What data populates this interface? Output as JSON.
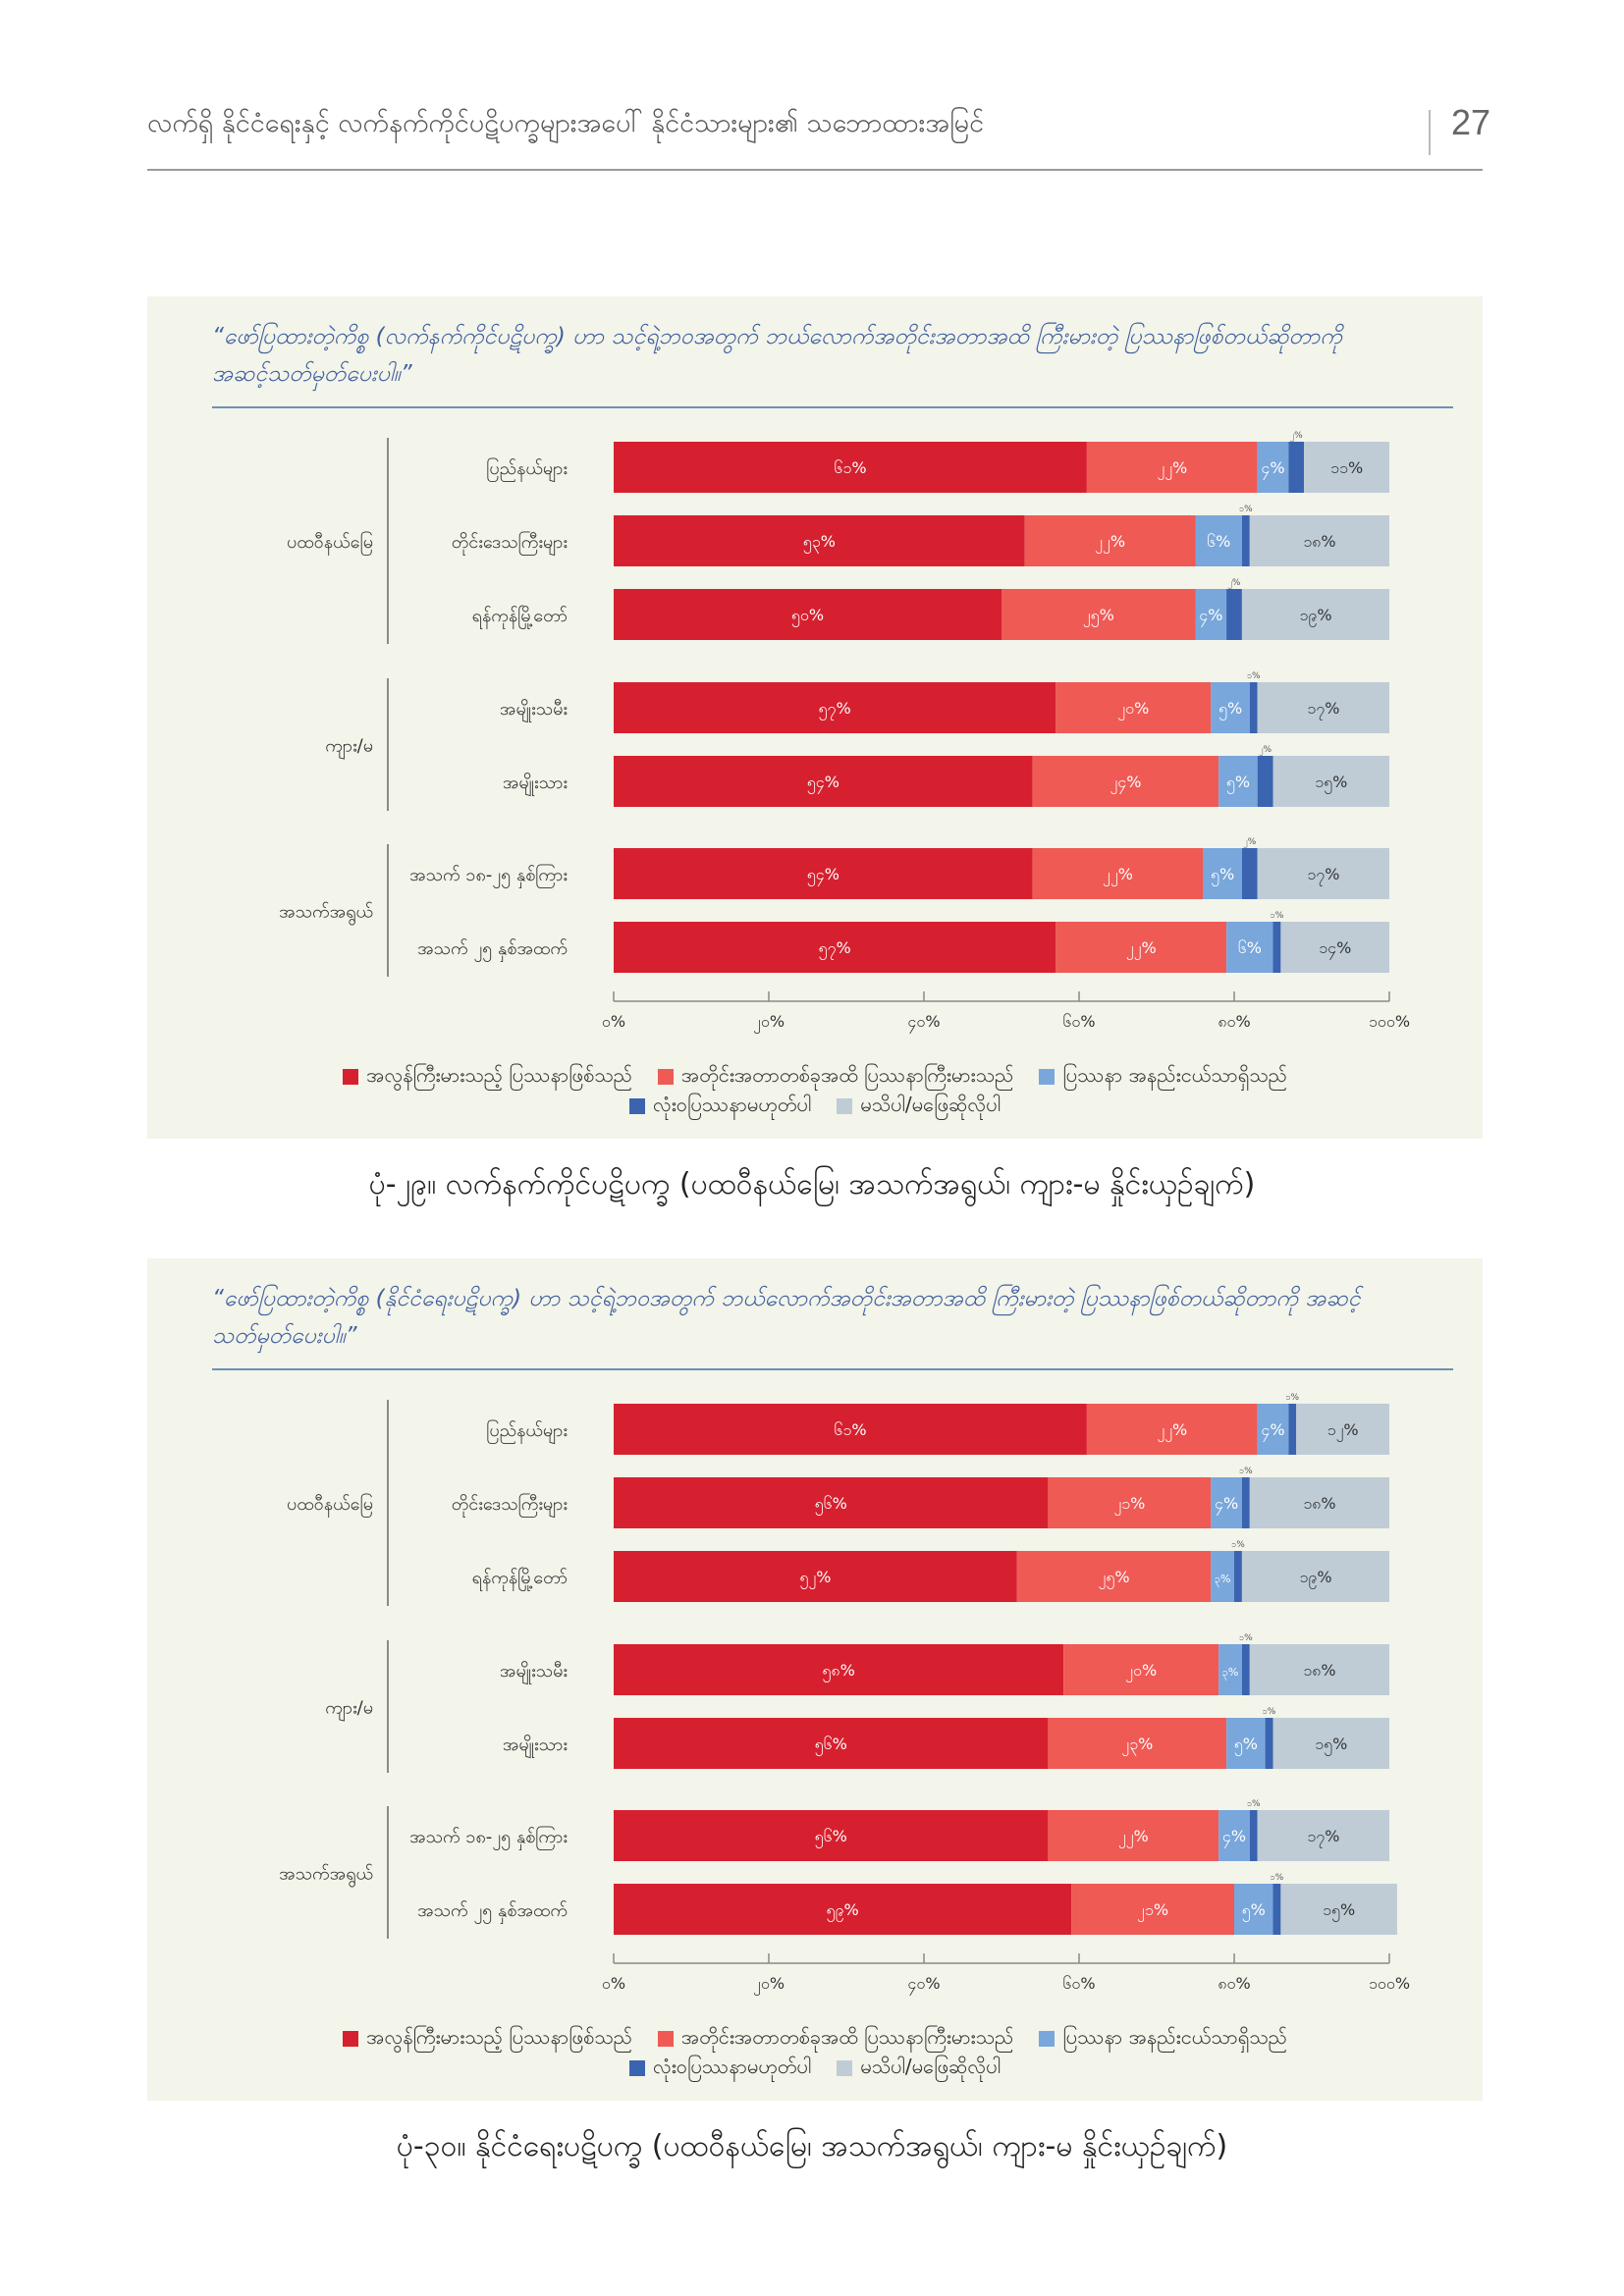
{
  "header": {
    "title": "လက်ရှိ နိုင်ငံရေးနှင့် လက်နက်ကိုင်ပဋိပက္ခများအပေါ် နိုင်ငံသားများ၏ သဘောထားအမြင်",
    "page_number": "27"
  },
  "colors": {
    "very_serious": "#d7202f",
    "somewhat_serious": "#ef5a55",
    "minor_problem": "#79a7db",
    "not_a_problem": "#3a64b0",
    "dont_know": "#bfccd6"
  },
  "legend": {
    "very_serious": "အလွန်ကြီးမားသည့် ပြဿနာဖြစ်သည်",
    "somewhat_serious": "အတိုင်းအတာတစ်ခုအထိ ပြဿနာကြီးမားသည်",
    "minor_problem": "ပြဿနာ အနည်းငယ်သာရှိသည်",
    "not_a_problem": "လုံးဝပြဿနာမဟုတ်ပါ",
    "dont_know": "မသိပါ/မဖြေဆိုလိုပါ"
  },
  "groups": {
    "region": "ပထဝီနယ်မြေ",
    "gender": "ကျား/မ",
    "age": "အသက်အရွယ်"
  },
  "chart_data": [
    {
      "type": "bar",
      "orientation": "horizontal",
      "stacked": true,
      "title": "“ဖော်ပြထားတဲ့ကိစ္စ (လက်နက်ကိုင်ပဋိပက္ခ) ဟာ သင့်ရဲ့ဘဝအတွက် ဘယ်လောက်အတိုင်းအတာအထိ ကြီးမားတဲ့ ပြဿနာဖြစ်တယ်ဆိုတာကို အဆင့်သတ်မှတ်ပေးပါ။”",
      "caption": "ပုံ-၂၉။ လက်နက်ကိုင်ပဋိပက္ခ (ပထဝီနယ်မြေ၊ အသက်အရွယ်၊ ကျား-မ နှိုင်းယှဉ်ချက်)",
      "xlim": [
        0,
        100
      ],
      "x_ticks": [
        "၀%",
        "၂၀%",
        "၄၀%",
        "၆၀%",
        "၈၀%",
        "၁၀၀%"
      ],
      "categories": [
        "ပြည်နယ်များ",
        "တိုင်းဒေသကြီးများ",
        "ရန်ကုန်မြို့တော်",
        "အမျိုးသမီး",
        "အမျိုးသား",
        "အသက် ၁၈-၂၅ နှစ်ကြား",
        "အသက် ၂၅ နှစ်အထက်"
      ],
      "category_groups": [
        "region",
        "region",
        "region",
        "gender",
        "gender",
        "age",
        "age"
      ],
      "series": [
        {
          "name": "အလွန်ကြီးမားသည့် ပြဿနာဖြစ်သည်",
          "color": "#d7202f",
          "values": [
            61,
            53,
            50,
            57,
            54,
            54,
            57
          ],
          "labels": [
            "၆၁%",
            "၅၃%",
            "၅၀%",
            "၅၇%",
            "၅၄%",
            "၅၄%",
            "၅၇%"
          ]
        },
        {
          "name": "အတိုင်းအတာတစ်ခုအထိ ပြဿနာကြီးမားသည်",
          "color": "#ef5a55",
          "values": [
            22,
            22,
            25,
            20,
            24,
            22,
            22
          ],
          "labels": [
            "၂၂%",
            "၂၂%",
            "၂၅%",
            "၂၀%",
            "၂၄%",
            "၂၂%",
            "၂၂%"
          ]
        },
        {
          "name": "ပြဿနာ အနည်းငယ်သာရှိသည်",
          "color": "#79a7db",
          "values": [
            4,
            6,
            4,
            5,
            5,
            5,
            6
          ],
          "labels": [
            "၄%",
            "၆%",
            "၄%",
            "၅%",
            "၅%",
            "၅%",
            "၆%"
          ]
        },
        {
          "name": "လုံးဝပြဿနာမဟုတ်ပါ",
          "color": "#3a64b0",
          "values": [
            2,
            1,
            2,
            1,
            2,
            2,
            1
          ],
          "labels": [
            "၂%",
            "၁%",
            "၂%",
            "၁%",
            "၂%",
            "၂%",
            "၁%"
          ]
        },
        {
          "name": "မသိပါ/မဖြေဆိုလိုပါ",
          "color": "#bfccd6",
          "values": [
            11,
            18,
            19,
            17,
            15,
            17,
            14
          ],
          "labels": [
            "၁၁%",
            "၁၈%",
            "၁၉%",
            "၁၇%",
            "၁၅%",
            "၁၇%",
            "၁၄%"
          ]
        }
      ]
    },
    {
      "type": "bar",
      "orientation": "horizontal",
      "stacked": true,
      "title": "“ဖော်ပြထားတဲ့ကိစ္စ (နိုင်ငံရေးပဋိပက္ခ) ဟာ သင့်ရဲ့ဘဝအတွက် ဘယ်လောက်အတိုင်းအတာအထိ ကြီးမားတဲ့ ပြဿနာဖြစ်တယ်ဆိုတာကို အဆင့်သတ်မှတ်ပေးပါ။”",
      "caption": "ပုံ-၃၀။ နိုင်ငံရေးပဋိပက္ခ (ပထဝီနယ်မြေ၊ အသက်အရွယ်၊ ကျား-မ နှိုင်းယှဉ်ချက်)",
      "xlim": [
        0,
        100
      ],
      "x_ticks": [
        "၀%",
        "၂၀%",
        "၄၀%",
        "၆၀%",
        "၈၀%",
        "၁၀၀%"
      ],
      "categories": [
        "ပြည်နယ်များ",
        "တိုင်းဒေသကြီးများ",
        "ရန်ကုန်မြို့တော်",
        "အမျိုးသမီး",
        "အမျိုးသား",
        "အသက် ၁၈-၂၅ နှစ်ကြား",
        "အသက် ၂၅ နှစ်အထက်"
      ],
      "category_groups": [
        "region",
        "region",
        "region",
        "gender",
        "gender",
        "age",
        "age"
      ],
      "series": [
        {
          "name": "အလွန်ကြီးမားသည့် ပြဿနာဖြစ်သည်",
          "color": "#d7202f",
          "values": [
            61,
            56,
            52,
            58,
            56,
            56,
            59
          ],
          "labels": [
            "၆၁%",
            "၅၆%",
            "၅၂%",
            "၅၈%",
            "၅၆%",
            "၅၆%",
            "၅၉%"
          ]
        },
        {
          "name": "အတိုင်းအတာတစ်ခုအထိ ပြဿနာကြီးမားသည်",
          "color": "#ef5a55",
          "values": [
            22,
            21,
            25,
            20,
            23,
            22,
            21
          ],
          "labels": [
            "၂၂%",
            "၂၁%",
            "၂၅%",
            "၂၀%",
            "၂၃%",
            "၂၂%",
            "၂၁%"
          ]
        },
        {
          "name": "ပြဿနာ အနည်းငယ်သာရှိသည်",
          "color": "#79a7db",
          "values": [
            4,
            4,
            3,
            3,
            5,
            4,
            5
          ],
          "labels": [
            "၄%",
            "၄%",
            "၃%",
            "၃%",
            "၅%",
            "၄%",
            "၅%"
          ]
        },
        {
          "name": "လုံးဝပြဿနာမဟုတ်ပါ",
          "color": "#3a64b0",
          "values": [
            1,
            1,
            1,
            1,
            1,
            1,
            1
          ],
          "labels": [
            "၁%",
            "၁%",
            "၁%",
            "၁%",
            "၁%",
            "၁%",
            "၁%"
          ]
        },
        {
          "name": "မသိပါ/မဖြေဆိုလိုပါ",
          "color": "#bfccd6",
          "values": [
            12,
            18,
            19,
            18,
            15,
            17,
            15
          ],
          "labels": [
            "၁၂%",
            "၁၈%",
            "၁၉%",
            "၁၈%",
            "၁၅%",
            "၁၇%",
            "၁၅%"
          ]
        }
      ]
    }
  ]
}
